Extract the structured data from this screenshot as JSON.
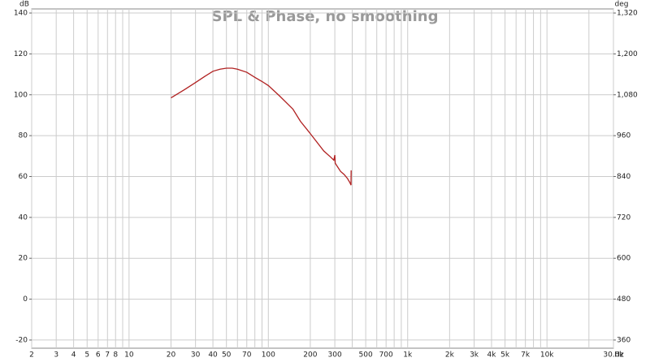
{
  "chart_data": {
    "type": "line",
    "title": "SPL & Phase, no smoothing",
    "y_label": "dB",
    "y2_label": "deg",
    "x_label": "Hz",
    "log_x": true,
    "grid": true,
    "xlim": [
      2,
      30000
    ],
    "xticks": [
      2,
      3,
      4,
      5,
      6,
      7,
      8,
      10,
      20,
      30,
      40,
      50,
      70,
      100,
      200,
      300,
      500,
      700,
      {
        "value": 1000,
        "label": "1k"
      },
      {
        "value": 2000,
        "label": "2k"
      },
      {
        "value": 3000,
        "label": "3k"
      },
      {
        "value": 4000,
        "label": "4k"
      },
      {
        "value": 5000,
        "label": "5k"
      },
      {
        "value": 7000,
        "label": "7k"
      },
      {
        "value": 10000,
        "label": "10k"
      },
      {
        "value": 30000,
        "label": "30.0k"
      }
    ],
    "xticks_minor": [
      9,
      60,
      80,
      90,
      400,
      600,
      800,
      900,
      6000,
      8000,
      9000,
      20000
    ],
    "ylim": [
      -24,
      142
    ],
    "yticks": [
      -20,
      0,
      20,
      40,
      60,
      80,
      100,
      120,
      140
    ],
    "y2lim": [
      336,
      1332
    ],
    "y2ticks": [
      {
        "value": 360,
        "label": "360"
      },
      {
        "value": 480,
        "label": "480"
      },
      {
        "value": 600,
        "label": "600"
      },
      {
        "value": 720,
        "label": "720"
      },
      {
        "value": 840,
        "label": "840"
      },
      {
        "value": 960,
        "label": "960"
      },
      {
        "value": 1080,
        "label": "1,080"
      },
      {
        "value": 1200,
        "label": "1,200"
      },
      {
        "value": 1320,
        "label": "1,320"
      }
    ],
    "series": [
      {
        "name": "SPL",
        "color": "#b02020",
        "x": [
          20,
          25,
          30,
          35,
          40,
          45,
          50,
          55,
          60,
          70,
          80,
          90,
          100,
          120,
          150,
          170,
          200,
          250,
          280,
          295,
          300,
          302,
          330,
          350,
          370,
          385,
          392,
          393
        ],
        "values": [
          98.5,
          102.5,
          106,
          109,
          111.5,
          112.5,
          113,
          113,
          112.5,
          111,
          108.5,
          106.5,
          104.5,
          99.5,
          93,
          87,
          81,
          72.5,
          69.5,
          68,
          70.5,
          66.5,
          62.5,
          61,
          59,
          57,
          55.8,
          63
        ]
      }
    ]
  }
}
